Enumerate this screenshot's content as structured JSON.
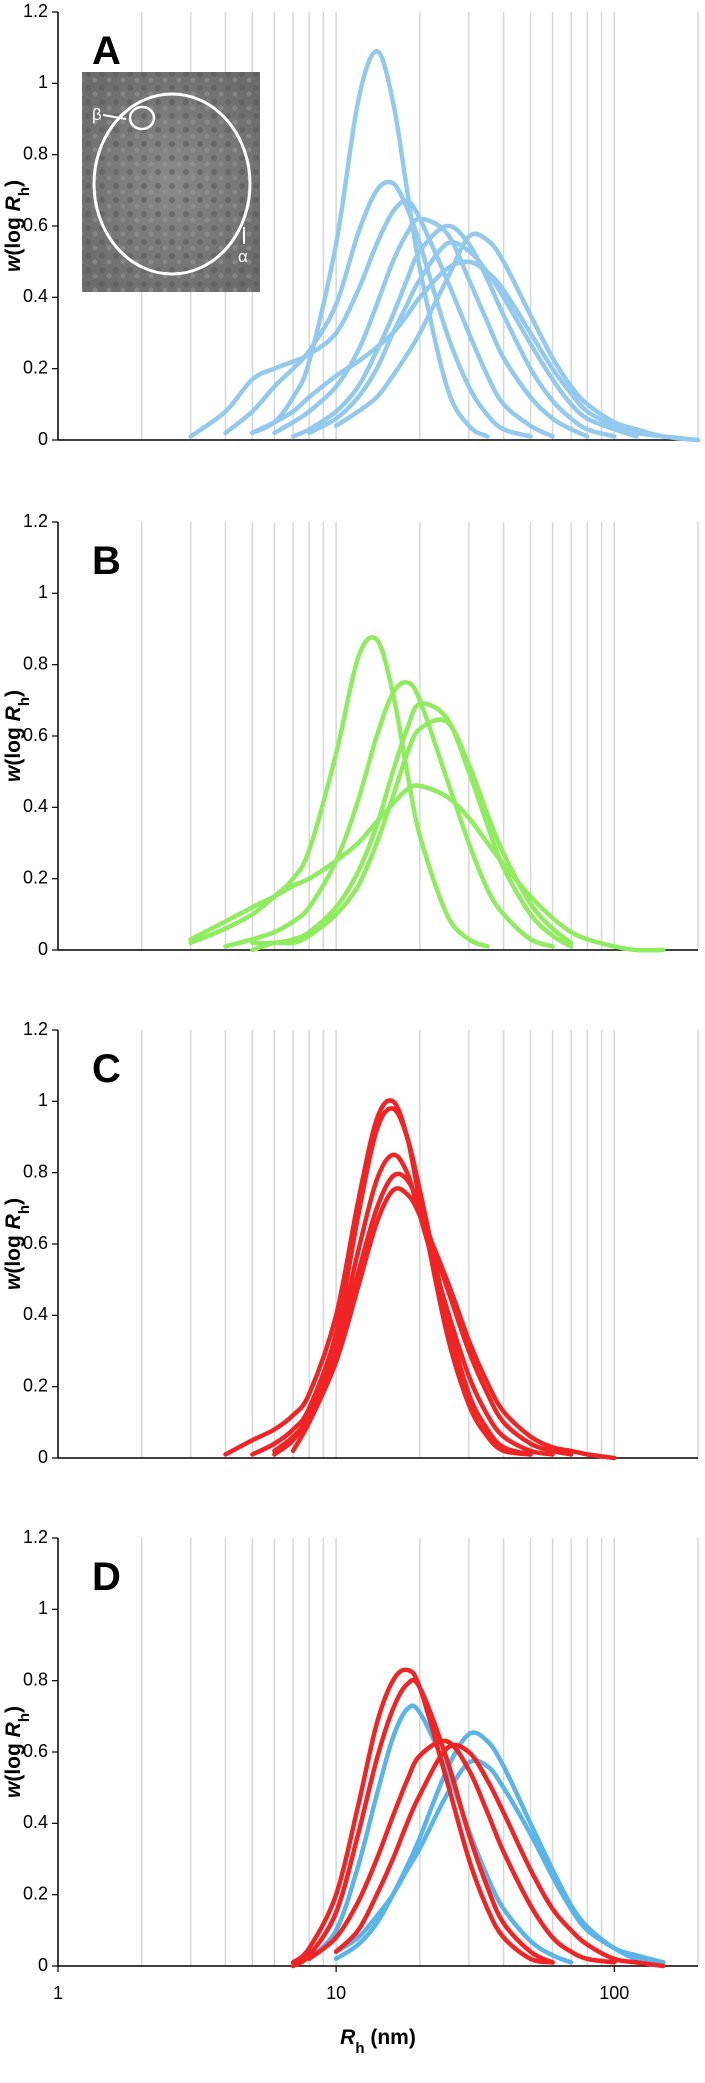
{
  "chart_data": [
    {
      "type": "line",
      "label": "A",
      "xscale": "log",
      "xlim": [
        1,
        200
      ],
      "ylim": [
        0,
        1.2
      ],
      "yticks": [
        0,
        0.2,
        0.4,
        0.6,
        0.8,
        1,
        1.2
      ],
      "ylabel": [
        "w",
        "(log ",
        "R",
        "h",
        ")"
      ],
      "xgrid": [
        2,
        3,
        4,
        5,
        6,
        7,
        8,
        9,
        10,
        20,
        30,
        40,
        50,
        60,
        70,
        80,
        90,
        100,
        200
      ],
      "annotations": [
        "β",
        "α"
      ],
      "x": [
        3,
        4,
        5,
        6,
        7,
        8,
        10,
        12,
        14,
        16,
        18,
        20,
        25,
        30,
        35,
        40,
        50,
        60,
        70,
        80,
        100,
        120,
        150,
        200
      ],
      "series": [
        {
          "color": "#93c9ec",
          "values": [
            null,
            null,
            0.02,
            0.05,
            0.12,
            0.22,
            0.55,
            0.95,
            1.09,
            0.95,
            0.7,
            0.48,
            0.15,
            0.04,
            0.01,
            null,
            null,
            null,
            null,
            null,
            null,
            null,
            null,
            null
          ]
        },
        {
          "color": "#93c9ec",
          "values": [
            null,
            0.02,
            0.08,
            0.15,
            0.2,
            0.25,
            0.38,
            0.58,
            0.7,
            0.72,
            0.65,
            0.55,
            0.3,
            0.15,
            0.07,
            0.03,
            0.01,
            null,
            null,
            null,
            null,
            null,
            null,
            null
          ]
        },
        {
          "color": "#93c9ec",
          "values": [
            0.01,
            0.08,
            0.17,
            0.2,
            0.22,
            0.24,
            0.3,
            0.42,
            0.55,
            0.64,
            0.67,
            0.62,
            0.45,
            0.3,
            0.18,
            0.1,
            0.04,
            0.01,
            null,
            null,
            null,
            null,
            null,
            null
          ]
        },
        {
          "color": "#93c9ec",
          "values": [
            null,
            null,
            null,
            0.02,
            0.05,
            0.08,
            0.15,
            0.25,
            0.38,
            0.5,
            0.58,
            0.62,
            0.58,
            0.45,
            0.33,
            0.23,
            0.12,
            0.06,
            0.03,
            0.01,
            null,
            null,
            null,
            null
          ]
        },
        {
          "color": "#93c9ec",
          "values": [
            null,
            null,
            null,
            null,
            null,
            null,
            0.04,
            0.08,
            0.12,
            0.18,
            0.24,
            0.3,
            0.45,
            0.57,
            0.56,
            0.5,
            0.35,
            0.23,
            0.15,
            0.1,
            0.05,
            0.03,
            0.01,
            0
          ]
        },
        {
          "color": "#93c9ec",
          "values": [
            null,
            null,
            0.02,
            0.05,
            0.08,
            0.12,
            0.18,
            0.22,
            0.26,
            0.3,
            0.35,
            0.4,
            0.48,
            0.5,
            0.47,
            0.42,
            0.3,
            0.2,
            0.13,
            0.08,
            0.04,
            0.02,
            0.01,
            0
          ]
        },
        {
          "color": "#93c9ec",
          "values": [
            null,
            null,
            null,
            null,
            null,
            0.02,
            0.06,
            0.12,
            0.2,
            0.3,
            0.38,
            0.45,
            0.55,
            0.53,
            0.47,
            0.4,
            0.27,
            0.17,
            0.1,
            0.06,
            0.03,
            0.01,
            null,
            null
          ]
        },
        {
          "color": "#93c9ec",
          "values": [
            null,
            null,
            null,
            null,
            0.01,
            0.03,
            0.08,
            0.15,
            0.25,
            0.35,
            0.45,
            0.53,
            0.6,
            0.55,
            0.45,
            0.35,
            0.2,
            0.11,
            0.06,
            0.03,
            0.01,
            null,
            null,
            null
          ]
        }
      ]
    },
    {
      "type": "line",
      "label": "B",
      "xscale": "log",
      "xlim": [
        1,
        200
      ],
      "ylim": [
        0,
        1.2
      ],
      "yticks": [
        0,
        0.2,
        0.4,
        0.6,
        0.8,
        1,
        1.2
      ],
      "ylabel": [
        "w",
        "(log ",
        "R",
        "h",
        ")"
      ],
      "xgrid": [
        2,
        3,
        4,
        5,
        6,
        7,
        8,
        9,
        10,
        20,
        30,
        40,
        50,
        60,
        70,
        80,
        90,
        100,
        200
      ],
      "x": [
        3,
        4,
        5,
        6,
        7,
        8,
        10,
        12,
        14,
        16,
        18,
        20,
        25,
        30,
        35,
        40,
        50,
        60,
        70,
        80,
        100,
        120,
        150,
        200
      ],
      "series": [
        {
          "color": "#8fec5f",
          "values": [
            0.02,
            0.06,
            0.1,
            0.15,
            0.2,
            0.28,
            0.55,
            0.82,
            0.87,
            0.72,
            0.5,
            0.32,
            0.1,
            0.03,
            0.01,
            null,
            null,
            null,
            null,
            null,
            null,
            null,
            null,
            null
          ]
        },
        {
          "color": "#8fec5f",
          "values": [
            null,
            0.01,
            0.03,
            0.05,
            0.08,
            0.12,
            0.25,
            0.42,
            0.6,
            0.72,
            0.75,
            0.7,
            0.48,
            0.3,
            0.17,
            0.1,
            0.03,
            0.01,
            null,
            null,
            null,
            null,
            null,
            null
          ]
        },
        {
          "color": "#8fec5f",
          "values": [
            null,
            null,
            0.02,
            0.02,
            0.03,
            0.05,
            0.12,
            0.22,
            0.35,
            0.5,
            0.62,
            0.69,
            0.65,
            0.5,
            0.35,
            0.23,
            0.1,
            0.04,
            0.01,
            null,
            null,
            null,
            null,
            null
          ]
        },
        {
          "color": "#8fec5f",
          "values": [
            null,
            null,
            0,
            0.02,
            0.02,
            0.04,
            0.1,
            0.18,
            0.3,
            0.43,
            0.55,
            0.62,
            0.64,
            0.52,
            0.38,
            0.27,
            0.13,
            0.06,
            0.02,
            null,
            null,
            null,
            null,
            null
          ]
        },
        {
          "color": "#8fec5f",
          "values": [
            0.03,
            0.08,
            0.12,
            0.15,
            0.18,
            0.2,
            0.25,
            0.3,
            0.36,
            0.41,
            0.45,
            0.46,
            0.43,
            0.37,
            0.3,
            0.24,
            0.15,
            0.09,
            0.05,
            0.03,
            0.01,
            0,
            0,
            null
          ]
        }
      ]
    },
    {
      "type": "line",
      "label": "C",
      "xscale": "log",
      "xlim": [
        1,
        200
      ],
      "ylim": [
        0,
        1.2
      ],
      "yticks": [
        0,
        0.2,
        0.4,
        0.6,
        0.8,
        1,
        1.2
      ],
      "ylabel": [
        "w",
        "(log ",
        "R",
        "h",
        ")"
      ],
      "xgrid": [
        2,
        3,
        4,
        5,
        6,
        7,
        8,
        9,
        10,
        20,
        30,
        40,
        50,
        60,
        70,
        80,
        90,
        100,
        200
      ],
      "x": [
        3,
        4,
        5,
        6,
        7,
        8,
        10,
        12,
        14,
        16,
        18,
        20,
        25,
        30,
        35,
        40,
        50,
        60,
        70,
        80,
        100,
        120,
        150,
        200
      ],
      "series": [
        {
          "color": "#f02424",
          "values": [
            null,
            0.01,
            0.05,
            0.08,
            0.12,
            0.18,
            0.4,
            0.72,
            0.95,
            1.0,
            0.9,
            0.72,
            0.35,
            0.15,
            0.06,
            0.02,
            0.01,
            null,
            null,
            null,
            null,
            null,
            null,
            null
          ]
        },
        {
          "color": "#f02424",
          "values": [
            null,
            null,
            0.01,
            0.04,
            0.08,
            0.14,
            0.35,
            0.68,
            0.92,
            0.98,
            0.9,
            0.75,
            0.4,
            0.18,
            0.08,
            0.03,
            0.01,
            null,
            null,
            null,
            null,
            null,
            null,
            null
          ]
        },
        {
          "color": "#f02424",
          "values": [
            null,
            null,
            null,
            0.01,
            0.05,
            0.12,
            0.32,
            0.58,
            0.78,
            0.85,
            0.8,
            0.68,
            0.42,
            0.23,
            0.12,
            0.06,
            0.02,
            0.01,
            null,
            null,
            null,
            null,
            null,
            null
          ]
        },
        {
          "color": "#f02424",
          "values": [
            null,
            null,
            null,
            0.02,
            0.06,
            0.12,
            0.3,
            0.52,
            0.7,
            0.79,
            0.78,
            0.7,
            0.48,
            0.3,
            0.18,
            0.1,
            0.04,
            0.02,
            0.01,
            null,
            null,
            null,
            null,
            null
          ]
        },
        {
          "color": "#f02424",
          "values": [
            null,
            null,
            null,
            null,
            0.02,
            0.1,
            0.27,
            0.48,
            0.66,
            0.75,
            0.74,
            0.68,
            0.5,
            0.33,
            0.21,
            0.13,
            0.06,
            0.03,
            0.02,
            0.01,
            0,
            null,
            null,
            null
          ]
        }
      ]
    },
    {
      "type": "line",
      "label": "D",
      "xscale": "log",
      "xlim": [
        1,
        200
      ],
      "ylim": [
        0,
        1.2
      ],
      "yticks": [
        0,
        0.2,
        0.4,
        0.6,
        0.8,
        1,
        1.2
      ],
      "xticks": [
        1,
        10,
        100
      ],
      "xlabel": [
        "R",
        "h",
        " (nm)"
      ],
      "ylabel": [
        "w",
        "(log ",
        "R",
        "h",
        ")"
      ],
      "xgrid": [
        2,
        3,
        4,
        5,
        6,
        7,
        8,
        9,
        10,
        20,
        30,
        40,
        50,
        60,
        70,
        80,
        90,
        100,
        200
      ],
      "x": [
        3,
        4,
        5,
        6,
        7,
        8,
        10,
        12,
        14,
        16,
        18,
        20,
        25,
        30,
        35,
        40,
        50,
        60,
        70,
        80,
        100,
        120,
        150,
        200
      ],
      "series": [
        {
          "color": "#5ab4e8",
          "values": [
            null,
            null,
            null,
            null,
            null,
            0.02,
            0.1,
            0.28,
            0.48,
            0.64,
            0.72,
            0.71,
            0.55,
            0.38,
            0.25,
            0.16,
            0.07,
            0.03,
            0.01,
            null,
            null,
            null,
            null,
            null
          ]
        },
        {
          "color": "#5ab4e8",
          "values": [
            null,
            null,
            null,
            null,
            null,
            null,
            0.02,
            0.06,
            0.12,
            0.2,
            0.28,
            0.36,
            0.55,
            0.65,
            0.63,
            0.56,
            0.4,
            0.27,
            0.17,
            0.11,
            0.05,
            0.03,
            0.01,
            null
          ]
        },
        {
          "color": "#5ab4e8",
          "values": [
            null,
            null,
            null,
            null,
            null,
            null,
            0.04,
            0.08,
            0.14,
            0.2,
            0.27,
            0.33,
            0.48,
            0.57,
            0.56,
            0.5,
            0.37,
            0.25,
            0.16,
            0.1,
            0.05,
            0.02,
            0.01,
            null
          ]
        },
        {
          "color": "#f02424",
          "values": [
            null,
            null,
            null,
            null,
            0.01,
            0.05,
            0.2,
            0.45,
            0.68,
            0.8,
            0.83,
            0.78,
            0.52,
            0.3,
            0.16,
            0.08,
            0.02,
            0.01,
            null,
            null,
            null,
            null,
            null,
            null
          ]
        },
        {
          "color": "#f02424",
          "values": [
            null,
            null,
            null,
            null,
            0,
            0.03,
            0.15,
            0.37,
            0.58,
            0.72,
            0.79,
            0.78,
            0.58,
            0.37,
            0.22,
            0.12,
            0.04,
            0.01,
            null,
            null,
            null,
            null,
            null,
            null
          ]
        },
        {
          "color": "#f02424",
          "values": [
            null,
            null,
            null,
            null,
            null,
            0.02,
            0.08,
            0.18,
            0.3,
            0.42,
            0.52,
            0.59,
            0.63,
            0.55,
            0.43,
            0.32,
            0.17,
            0.08,
            0.04,
            0.02,
            0.01,
            null,
            null,
            null
          ]
        },
        {
          "color": "#f02424",
          "values": [
            null,
            null,
            null,
            null,
            null,
            null,
            0.04,
            0.1,
            0.2,
            0.3,
            0.4,
            0.48,
            0.61,
            0.6,
            0.52,
            0.43,
            0.27,
            0.16,
            0.1,
            0.06,
            0.02,
            0.01,
            0,
            null
          ]
        }
      ]
    }
  ]
}
